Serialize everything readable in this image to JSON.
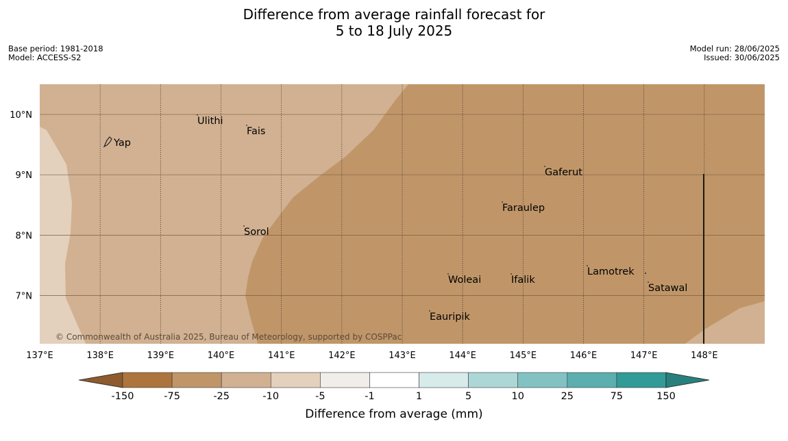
{
  "title": {
    "line1": "Difference from average rainfall forecast for",
    "line2": "5 to 18 July 2025"
  },
  "meta_left": {
    "base_period": "Base period: 1981-2018",
    "model": "Model: ACCESS-S2"
  },
  "meta_right": {
    "model_run": "Model run: 28/06/2025",
    "issued": "Issued: 30/06/2025"
  },
  "map": {
    "lon_range": [
      137,
      149
    ],
    "lat_range": [
      6.2,
      10.5
    ],
    "lon_ticks": [
      "137°E",
      "138°E",
      "139°E",
      "140°E",
      "141°E",
      "142°E",
      "143°E",
      "144°E",
      "145°E",
      "146°E",
      "147°E",
      "148°E"
    ],
    "lat_ticks": [
      "10°N",
      "9°N",
      "8°N",
      "7°N"
    ],
    "places": [
      {
        "name": "Yap"
      },
      {
        "name": "Ulithi"
      },
      {
        "name": "Fais"
      },
      {
        "name": "Gaferut"
      },
      {
        "name": "Faraulep"
      },
      {
        "name": "Sorol"
      },
      {
        "name": "Lamotrek"
      },
      {
        "name": "Woleai"
      },
      {
        "name": "Ifalik"
      },
      {
        "name": "Satawal"
      },
      {
        "name": "Eauripik"
      }
    ],
    "copyright": "© Commonwealth of Australia 2025, Bureau of Meteorology, supported by COSPPac",
    "region_colors": {
      "minus_75_to_25": "#c09669",
      "minus_25_to_10": "#d1b192",
      "minus_10_to_5": "#e3d0bd"
    }
  },
  "colorbar": {
    "label": "Difference from average (mm)",
    "ticks": [
      "-150",
      "-75",
      "-25",
      "-10",
      "-5",
      "-1",
      "1",
      "5",
      "10",
      "25",
      "75",
      "150"
    ],
    "colors": [
      "#ad743d",
      "#c09669",
      "#d1b192",
      "#e3d0bd",
      "#f1ede8",
      "#ffffff",
      "#d7ebea",
      "#add6d7",
      "#83c2c2",
      "#5bafae",
      "#329a97"
    ],
    "extend_low_color": "#8e5b2e",
    "extend_high_color": "#28807c"
  }
}
